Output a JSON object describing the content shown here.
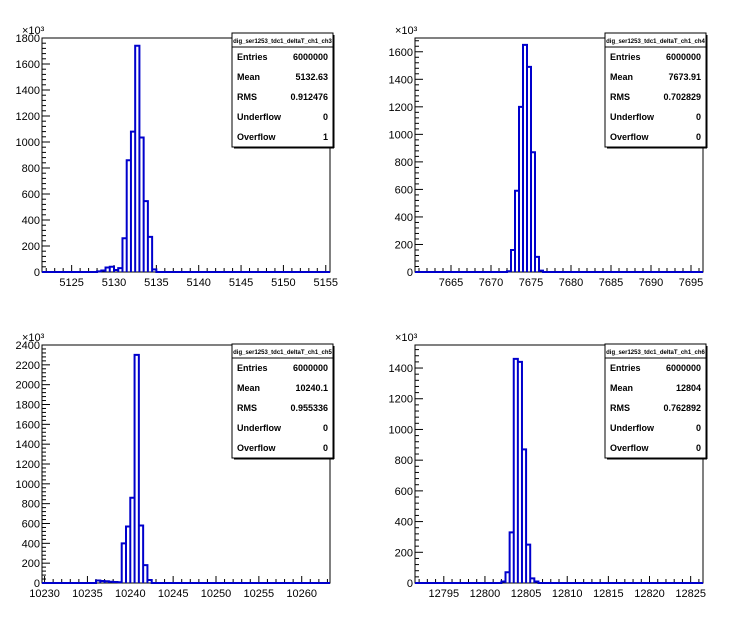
{
  "chart_data": [
    {
      "type": "histogram",
      "title": "",
      "stats": {
        "name": "dig_ser1253_tdc1_deltaT_ch1_ch3",
        "rows": [
          {
            "label": "Entries",
            "value": "6000000"
          },
          {
            "label": "Mean",
            "value": "5132.63"
          },
          {
            "label": "RMS",
            "value": "0.912476"
          },
          {
            "label": "Underflow",
            "value": "0"
          },
          {
            "label": "Overflow",
            "value": "1"
          }
        ]
      },
      "y_multiplier": "×10³",
      "xlim": [
        5121.5,
        5155.5
      ],
      "ylim": [
        0,
        1800
      ],
      "x_ticks": [
        5125,
        5130,
        5135,
        5140,
        5145,
        5150,
        5155
      ],
      "y_ticks": [
        0,
        200,
        400,
        600,
        800,
        1000,
        1200,
        1400,
        1600,
        1800
      ],
      "bin_width": 0.5,
      "bins": [
        {
          "x": 5128.0,
          "y": 5
        },
        {
          "x": 5128.5,
          "y": 12
        },
        {
          "x": 5129.0,
          "y": 35
        },
        {
          "x": 5129.5,
          "y": 40
        },
        {
          "x": 5130.0,
          "y": 15
        },
        {
          "x": 5130.5,
          "y": 30
        },
        {
          "x": 5131.0,
          "y": 260
        },
        {
          "x": 5131.5,
          "y": 860
        },
        {
          "x": 5132.0,
          "y": 1080
        },
        {
          "x": 5132.5,
          "y": 1740
        },
        {
          "x": 5133.0,
          "y": 1035
        },
        {
          "x": 5133.5,
          "y": 545
        },
        {
          "x": 5134.0,
          "y": 270
        },
        {
          "x": 5134.5,
          "y": 20
        }
      ]
    },
    {
      "type": "histogram",
      "title": "",
      "stats": {
        "name": "dig_ser1253_tdc1_deltaT_ch1_ch4",
        "rows": [
          {
            "label": "Entries",
            "value": "6000000"
          },
          {
            "label": "Mean",
            "value": "7673.91"
          },
          {
            "label": "RMS",
            "value": "0.702829"
          },
          {
            "label": "Underflow",
            "value": "0"
          },
          {
            "label": "Overflow",
            "value": "0"
          }
        ]
      },
      "y_multiplier": "×10³",
      "xlim": [
        7660.5,
        7696.5
      ],
      "ylim": [
        0,
        1700
      ],
      "x_ticks": [
        7665,
        7670,
        7675,
        7680,
        7685,
        7690,
        7695
      ],
      "y_ticks": [
        0,
        200,
        400,
        600,
        800,
        1000,
        1200,
        1400,
        1600
      ],
      "bin_width": 0.5,
      "bins": [
        {
          "x": 7672.0,
          "y": 5
        },
        {
          "x": 7672.5,
          "y": 160
        },
        {
          "x": 7673.0,
          "y": 590
        },
        {
          "x": 7673.5,
          "y": 1200
        },
        {
          "x": 7674.0,
          "y": 1650
        },
        {
          "x": 7674.5,
          "y": 1490
        },
        {
          "x": 7675.0,
          "y": 870
        },
        {
          "x": 7675.5,
          "y": 110
        },
        {
          "x": 7676.0,
          "y": 10
        }
      ]
    },
    {
      "type": "histogram",
      "title": "",
      "stats": {
        "name": "dig_ser1253_tdc1_deltaT_ch1_ch5",
        "rows": [
          {
            "label": "Entries",
            "value": "6000000"
          },
          {
            "label": "Mean",
            "value": "10240.1"
          },
          {
            "label": "RMS",
            "value": "0.955336"
          },
          {
            "label": "Underflow",
            "value": "0"
          },
          {
            "label": "Overflow",
            "value": "0"
          }
        ]
      },
      "y_multiplier": "×10³",
      "xlim": [
        10229.7,
        10263.3
      ],
      "ylim": [
        0,
        2400
      ],
      "x_ticks": [
        10230,
        10235,
        10240,
        10245,
        10250,
        10255,
        10260
      ],
      "y_ticks": [
        0,
        200,
        400,
        600,
        800,
        1000,
        1200,
        1400,
        1600,
        1800,
        2000,
        2200,
        2400
      ],
      "bin_width": 0.5,
      "bins": [
        {
          "x": 10236.0,
          "y": 25
        },
        {
          "x": 10236.5,
          "y": 20
        },
        {
          "x": 10237.0,
          "y": 18
        },
        {
          "x": 10237.5,
          "y": 12
        },
        {
          "x": 10238.0,
          "y": 10
        },
        {
          "x": 10238.5,
          "y": 8
        },
        {
          "x": 10239.0,
          "y": 400
        },
        {
          "x": 10239.5,
          "y": 570
        },
        {
          "x": 10240.0,
          "y": 860
        },
        {
          "x": 10240.5,
          "y": 2300
        },
        {
          "x": 10241.0,
          "y": 580
        },
        {
          "x": 10241.5,
          "y": 180
        },
        {
          "x": 10242.0,
          "y": 30
        }
      ]
    },
    {
      "type": "histogram",
      "title": "",
      "stats": {
        "name": "dig_ser1253_tdc1_deltaT_ch1_ch6",
        "rows": [
          {
            "label": "Entries",
            "value": "6000000"
          },
          {
            "label": "Mean",
            "value": "12804"
          },
          {
            "label": "RMS",
            "value": "0.762892"
          },
          {
            "label": "Underflow",
            "value": "0"
          },
          {
            "label": "Overflow",
            "value": "0"
          }
        ]
      },
      "y_multiplier": "×10³",
      "xlim": [
        12791.5,
        12826.5
      ],
      "ylim": [
        0,
        1550
      ],
      "x_ticks": [
        12795,
        12800,
        12805,
        12810,
        12815,
        12820,
        12825
      ],
      "y_ticks": [
        0,
        200,
        400,
        600,
        800,
        1000,
        1200,
        1400
      ],
      "bin_width": 0.5,
      "bins": [
        {
          "x": 12802.0,
          "y": 10
        },
        {
          "x": 12802.5,
          "y": 70
        },
        {
          "x": 12803.0,
          "y": 330
        },
        {
          "x": 12803.5,
          "y": 1460
        },
        {
          "x": 12804.0,
          "y": 1440
        },
        {
          "x": 12804.5,
          "y": 870
        },
        {
          "x": 12805.0,
          "y": 250
        },
        {
          "x": 12805.5,
          "y": 30
        },
        {
          "x": 12806.0,
          "y": 10
        }
      ]
    }
  ]
}
